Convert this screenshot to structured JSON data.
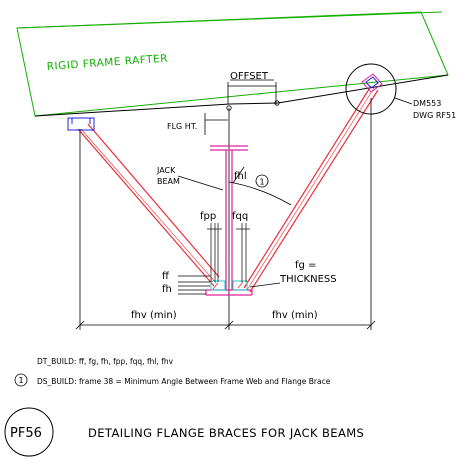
{
  "rafter_label": "RIGID FRAME RAFTER",
  "offset_label": "OFFSET",
  "flg_ht_label": "FLG HT.",
  "jack_beam_line1": "JACK",
  "jack_beam_line2": "BEAM",
  "fhl_label": "fhl",
  "callout_number": "1",
  "fpp_label": "fpp",
  "fqq_label": "fqq",
  "ff_label": "ff",
  "fh_label": "fh",
  "fg_line1": "fg  =",
  "fg_line2": "THICKNESS",
  "fhv_left_label": "fhv  (min)",
  "fhv_right_label": "fhv  (min)",
  "ref_line1": "DM553",
  "ref_line2": "DWG  RF51",
  "dt_build_note": "DT_BUILD:  ff,  fg,  fh,  fpp,  fqq,  fhl,  fhv",
  "ds_note_number": "1",
  "ds_build_note": "DS_BUILD:  frame  38  =  Minimum  Angle  Between  Frame  Web  and  Flange  Brace",
  "badge_text": "PF56",
  "title": "DETAILING  FLANGE  BRACES  FOR  JACK  BEAMS",
  "colors": {
    "rafter": "#12b000",
    "brace": "#e8303a",
    "jack_beam": "#e0209a",
    "clip": "#22c8c8",
    "bracket": "#2020e0",
    "linework": "#000000"
  }
}
